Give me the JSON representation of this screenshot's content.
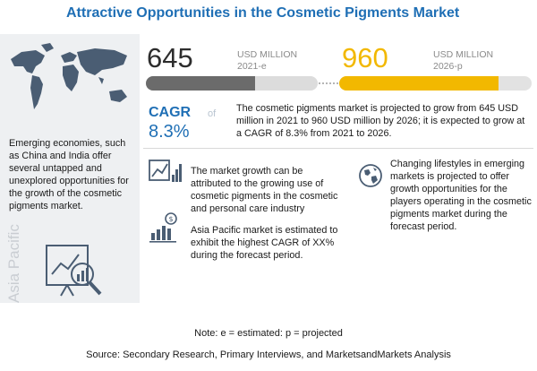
{
  "title": "Attractive Opportunities in the Cosmetic Pigments Market",
  "left_panel": {
    "text": "Emerging economies, such as China and India offer several untapped and unexplored opportunities for the growth of the cosmetic pigments market.",
    "region": "Asia Pacific",
    "map_icon": "world-map-icon",
    "chart_icon": "analytics-magnifier-icon"
  },
  "market_size": {
    "value_2021": "645",
    "unit_2021": "USD MILLION",
    "year_2021": "2021-e",
    "value_2026": "960",
    "unit_2026": "USD MILLION",
    "year_2026": "2026-p",
    "bar_2021_fill": 0.64,
    "bar_2026_fill": 0.83,
    "color_2021": "#6b6b6b",
    "color_2026": "#f2b800"
  },
  "cagr": {
    "label": "CAGR",
    "of": "of",
    "value": "8.3%",
    "text": "The cosmetic pigments market is projected to grow from 645 USD million in 2021 to 960 USD million by 2026; it is expected to grow at a CAGR of 8.3% from 2021 to 2026."
  },
  "points": [
    {
      "icon": "growth-chart-icon",
      "text": "The market growth can be attributed to the growing use of cosmetic pigments in the cosmetic and personal care industry"
    },
    {
      "icon": "dollar-bar-chart-icon",
      "text": "Asia Pacific market is estimated to exhibit the highest CAGR of XX% during the forecast period."
    },
    {
      "icon": "globe-icon",
      "text": "Changing lifestyles in emerging markets is projected to offer growth opportunities for the players operating in the cosmetic pigments market during the forecast period."
    }
  ],
  "note": "Note: e = estimated: p = projected",
  "source": "Source: Secondary Research, Primary Interviews, and MarketsandMarkets Analysis",
  "colors": {
    "accent": "#1f6fb5",
    "highlight": "#f2b800"
  }
}
